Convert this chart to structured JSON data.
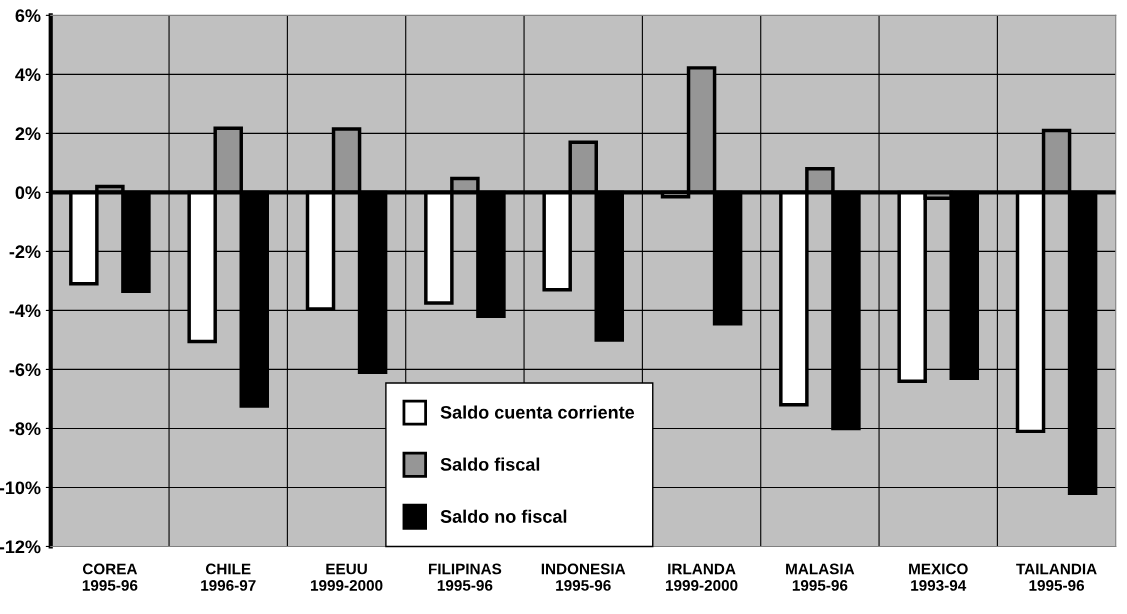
{
  "chart_data": {
    "type": "bar",
    "categories": [
      "COREA\n1995-96",
      "CHILE\n1996-97",
      "EEUU\n1999-2000",
      "FILIPINAS\n1995-96",
      "INDONESIA\n1995-96",
      "IRLANDA\n1999-2000",
      "MALASIA\n1995-96",
      "MEXICO\n1993-94",
      "TAILANDIA\n1995-96"
    ],
    "series": [
      {
        "name": "Saldo cuenta corriente",
        "color": "#ffffff",
        "values": [
          -3.1,
          -5.05,
          -3.95,
          -3.75,
          -3.3,
          -0.15,
          -7.2,
          -6.4,
          -8.1
        ]
      },
      {
        "name": "Saldo fiscal",
        "color": "#969696",
        "values": [
          0.2,
          2.17,
          2.15,
          0.47,
          1.7,
          4.22,
          0.8,
          -0.2,
          2.1
        ]
      },
      {
        "name": "Saldo no fiscal",
        "color": "#000000",
        "values": [
          -3.35,
          -7.24,
          -6.1,
          -4.2,
          -5.0,
          -4.45,
          -8.0,
          -6.3,
          -10.2
        ]
      }
    ],
    "ylim": [
      -12,
      6
    ],
    "yticks": [
      {
        "value": -12,
        "label": "-12%"
      },
      {
        "value": -10,
        "label": "-10%"
      },
      {
        "value": -8,
        "label": "-8%"
      },
      {
        "value": -6,
        "label": "-6%"
      },
      {
        "value": -4,
        "label": "-4%"
      },
      {
        "value": -2,
        "label": "-2%"
      },
      {
        "value": 0,
        "label": "0%"
      },
      {
        "value": 2,
        "label": "2%"
      },
      {
        "value": 4,
        "label": "4%"
      },
      {
        "value": 6,
        "label": "6%"
      }
    ],
    "grid": true,
    "legend": "bottom"
  }
}
